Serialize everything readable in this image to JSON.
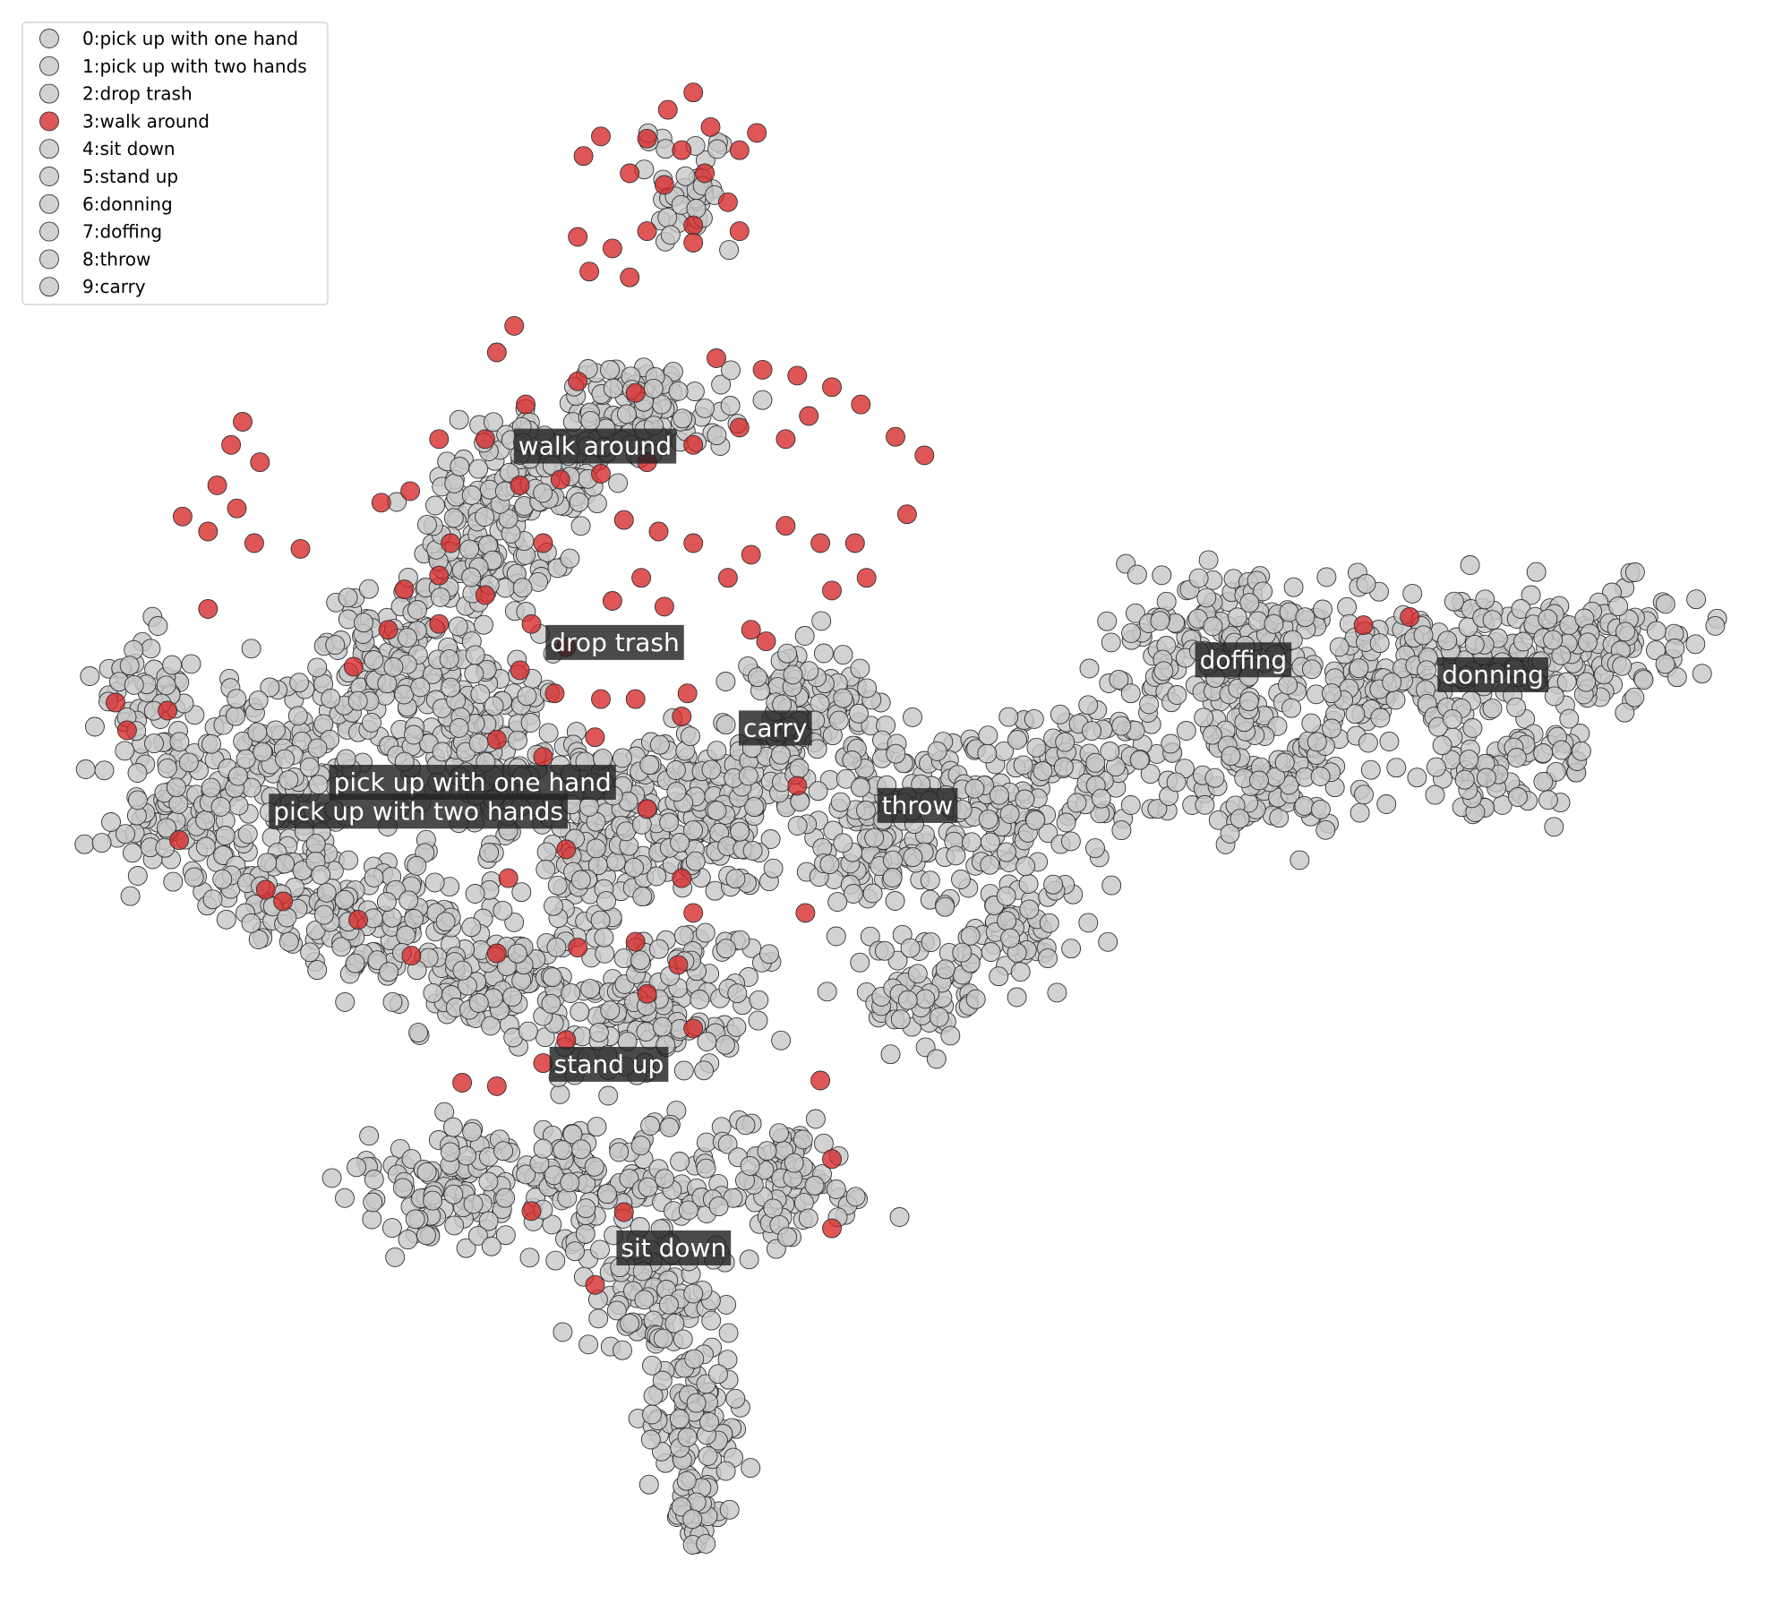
{
  "chart_data": {
    "type": "scatter",
    "title": "",
    "xlabel": "",
    "ylabel": "",
    "axes_visible": false,
    "grid": false,
    "legend_position": "top-left",
    "highlighted_class": 3,
    "colors": {
      "highlight": "#d62728",
      "other": "#c8c8c8",
      "marker_edge": "#333333",
      "label_box": "#222222",
      "label_text": "#ffffff"
    },
    "legend": [
      "0:pick up with one hand",
      "1:pick up with two hands",
      "2:drop trash",
      "3:walk around",
      "4:sit down",
      "5:stand up",
      "6:donning",
      "7:doffing",
      "8:throw",
      "9:carry"
    ],
    "xlim": [
      0,
      1550
    ],
    "ylim": [
      0,
      1400
    ],
    "cluster_labels": [
      {
        "class": 0,
        "text": "pick up with one hand",
        "x": 409,
        "y": 677
      },
      {
        "class": 1,
        "text": "pick up with two hands",
        "x": 362,
        "y": 702
      },
      {
        "class": 2,
        "text": "drop trash",
        "x": 532,
        "y": 556
      },
      {
        "class": 3,
        "text": "walk around",
        "x": 515,
        "y": 386
      },
      {
        "class": 4,
        "text": "sit down",
        "x": 583,
        "y": 1080
      },
      {
        "class": 5,
        "text": "stand up",
        "x": 527,
        "y": 921
      },
      {
        "class": 6,
        "text": "donning",
        "x": 1292,
        "y": 584
      },
      {
        "class": 7,
        "text": "doffing",
        "x": 1076,
        "y": 571
      },
      {
        "class": 8,
        "text": "throw",
        "x": 794,
        "y": 697
      },
      {
        "class": 9,
        "text": "carry",
        "x": 671,
        "y": 630
      }
    ],
    "series": [
      {
        "class": 3,
        "points": [
          [
            600,
            80
          ],
          [
            578,
            95
          ],
          [
            615,
            110
          ],
          [
            590,
            130
          ],
          [
            560,
            120
          ],
          [
            520,
            118
          ],
          [
            505,
            135
          ],
          [
            545,
            150
          ],
          [
            575,
            160
          ],
          [
            610,
            150
          ],
          [
            640,
            130
          ],
          [
            655,
            115
          ],
          [
            630,
            175
          ],
          [
            600,
            195
          ],
          [
            560,
            200
          ],
          [
            530,
            215
          ],
          [
            500,
            205
          ],
          [
            510,
            235
          ],
          [
            545,
            240
          ],
          [
            600,
            210
          ],
          [
            640,
            200
          ],
          [
            210,
            365
          ],
          [
            200,
            385
          ],
          [
            225,
            400
          ],
          [
            188,
            420
          ],
          [
            205,
            440
          ],
          [
            180,
            460
          ],
          [
            220,
            470
          ],
          [
            158,
            447
          ],
          [
            470,
            470
          ],
          [
            455,
            350
          ],
          [
            430,
            305
          ],
          [
            445,
            282
          ],
          [
            500,
            330
          ],
          [
            550,
            340
          ],
          [
            620,
            310
          ],
          [
            660,
            320
          ],
          [
            690,
            325
          ],
          [
            720,
            335
          ],
          [
            745,
            350
          ],
          [
            700,
            360
          ],
          [
            680,
            380
          ],
          [
            640,
            370
          ],
          [
            600,
            385
          ],
          [
            560,
            400
          ],
          [
            520,
            410
          ],
          [
            485,
            415
          ],
          [
            450,
            420
          ],
          [
            420,
            380
          ],
          [
            380,
            380
          ],
          [
            355,
            425
          ],
          [
            390,
            470
          ],
          [
            350,
            510
          ],
          [
            380,
            498
          ],
          [
            420,
            515
          ],
          [
            460,
            540
          ],
          [
            490,
            560
          ],
          [
            530,
            520
          ],
          [
            555,
            500
          ],
          [
            575,
            525
          ],
          [
            520,
            605
          ],
          [
            480,
            600
          ],
          [
            450,
            580
          ],
          [
            430,
            640
          ],
          [
            470,
            655
          ],
          [
            515,
            638
          ],
          [
            550,
            605
          ],
          [
            590,
            620
          ],
          [
            440,
            760
          ],
          [
            490,
            735
          ],
          [
            560,
            700
          ],
          [
            590,
            760
          ],
          [
            600,
            790
          ],
          [
            587,
            835
          ],
          [
            550,
            815
          ],
          [
            500,
            820
          ],
          [
            430,
            825
          ],
          [
            356,
            827
          ],
          [
            310,
            796
          ],
          [
            245,
            780
          ],
          [
            230,
            770
          ],
          [
            155,
            727
          ],
          [
            110,
            632
          ],
          [
            100,
            608
          ],
          [
            145,
            615
          ],
          [
            180,
            527
          ],
          [
            260,
            475
          ],
          [
            330,
            435
          ],
          [
            775,
            378
          ],
          [
            800,
            394
          ],
          [
            785,
            445
          ],
          [
            740,
            470
          ],
          [
            710,
            470
          ],
          [
            680,
            455
          ],
          [
            650,
            480
          ],
          [
            630,
            500
          ],
          [
            600,
            470
          ],
          [
            570,
            460
          ],
          [
            540,
            450
          ],
          [
            720,
            511
          ],
          [
            750,
            500
          ],
          [
            1180,
            541
          ],
          [
            1220,
            534
          ],
          [
            710,
            935
          ],
          [
            720,
            1003
          ],
          [
            720,
            1063
          ],
          [
            515,
            1112
          ],
          [
            540,
            1049
          ],
          [
            650,
            545
          ],
          [
            663,
            555
          ],
          [
            595,
            600
          ],
          [
            380,
            540
          ],
          [
            336,
            545
          ],
          [
            306,
            577
          ],
          [
            460,
            1048
          ],
          [
            400,
            937
          ],
          [
            430,
            940
          ],
          [
            690,
            680
          ],
          [
            697,
            790
          ],
          [
            600,
            890
          ],
          [
            560,
            860
          ],
          [
            490,
            900
          ],
          [
            470,
            920
          ]
        ]
      }
    ]
  }
}
